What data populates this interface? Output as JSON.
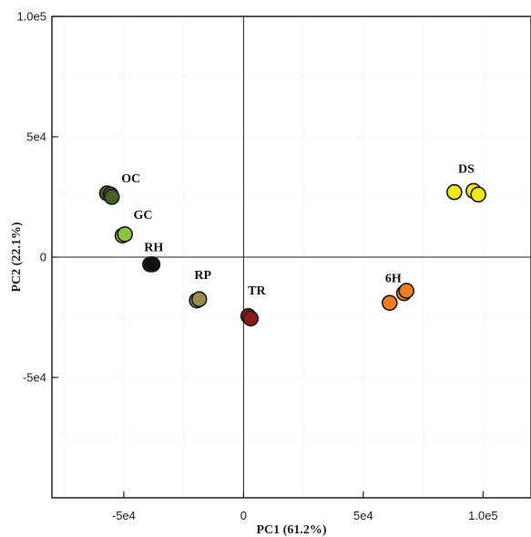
{
  "chart_data": {
    "type": "scatter",
    "title": "",
    "xlabel": "PC1 (61.2%)",
    "ylabel": "PC2 (22.1%)",
    "xlim": [
      -80000,
      120000
    ],
    "ylim": [
      -100000,
      100000
    ],
    "x_ticks": [
      {
        "value": -50000,
        "label": "-5e4"
      },
      {
        "value": 0,
        "label": "0"
      },
      {
        "value": 50000,
        "label": "5e4"
      },
      {
        "value": 100000,
        "label": "1.0e5"
      }
    ],
    "y_ticks": [
      {
        "value": 100000,
        "label": "1.0e5"
      },
      {
        "value": 50000,
        "label": "5e4"
      },
      {
        "value": 0,
        "label": "0"
      },
      {
        "value": -50000,
        "label": "-5e4"
      }
    ],
    "grid": true,
    "zero_lines": true,
    "series": [
      {
        "label": "OC",
        "color": "#4a5e2a",
        "points": [
          [
            -57000,
            26500
          ],
          [
            -55500,
            26000
          ],
          [
            -55000,
            25000
          ]
        ]
      },
      {
        "label": "GC",
        "color": "#8cc640",
        "points": [
          [
            -50500,
            9000
          ],
          [
            -49500,
            9500
          ]
        ]
      },
      {
        "label": "RH",
        "color": "#111111",
        "points": [
          [
            -39000,
            -3000
          ],
          [
            -38000,
            -3000
          ]
        ]
      },
      {
        "label": "RP",
        "color": "#9a8c4e",
        "points": [
          [
            -19500,
            -18000
          ],
          [
            -18500,
            -17500
          ]
        ]
      },
      {
        "label": "TR",
        "color": "#8b1a1a",
        "points": [
          [
            2000,
            -24500
          ],
          [
            3000,
            -25500
          ]
        ]
      },
      {
        "label": "6H",
        "color": "#f07c1c",
        "points": [
          [
            61000,
            -19000
          ],
          [
            67000,
            -15000
          ],
          [
            68000,
            -14000
          ]
        ]
      },
      {
        "label": "DS",
        "color": "#f2e818",
        "points": [
          [
            88000,
            27000
          ],
          [
            96000,
            27500
          ],
          [
            98000,
            26000
          ]
        ]
      }
    ],
    "point_labels": [
      {
        "text": "OC",
        "x": -47000,
        "y": 31000
      },
      {
        "text": "GC",
        "x": -42000,
        "y": 16000
      },
      {
        "text": "RH",
        "x": -37500,
        "y": 2500
      },
      {
        "text": "RP",
        "x": -17000,
        "y": -9000
      },
      {
        "text": "TR",
        "x": 5500,
        "y": -15500
      },
      {
        "text": "6H",
        "x": 62500,
        "y": -10500
      },
      {
        "text": "DS",
        "x": 93000,
        "y": 35000
      }
    ]
  }
}
